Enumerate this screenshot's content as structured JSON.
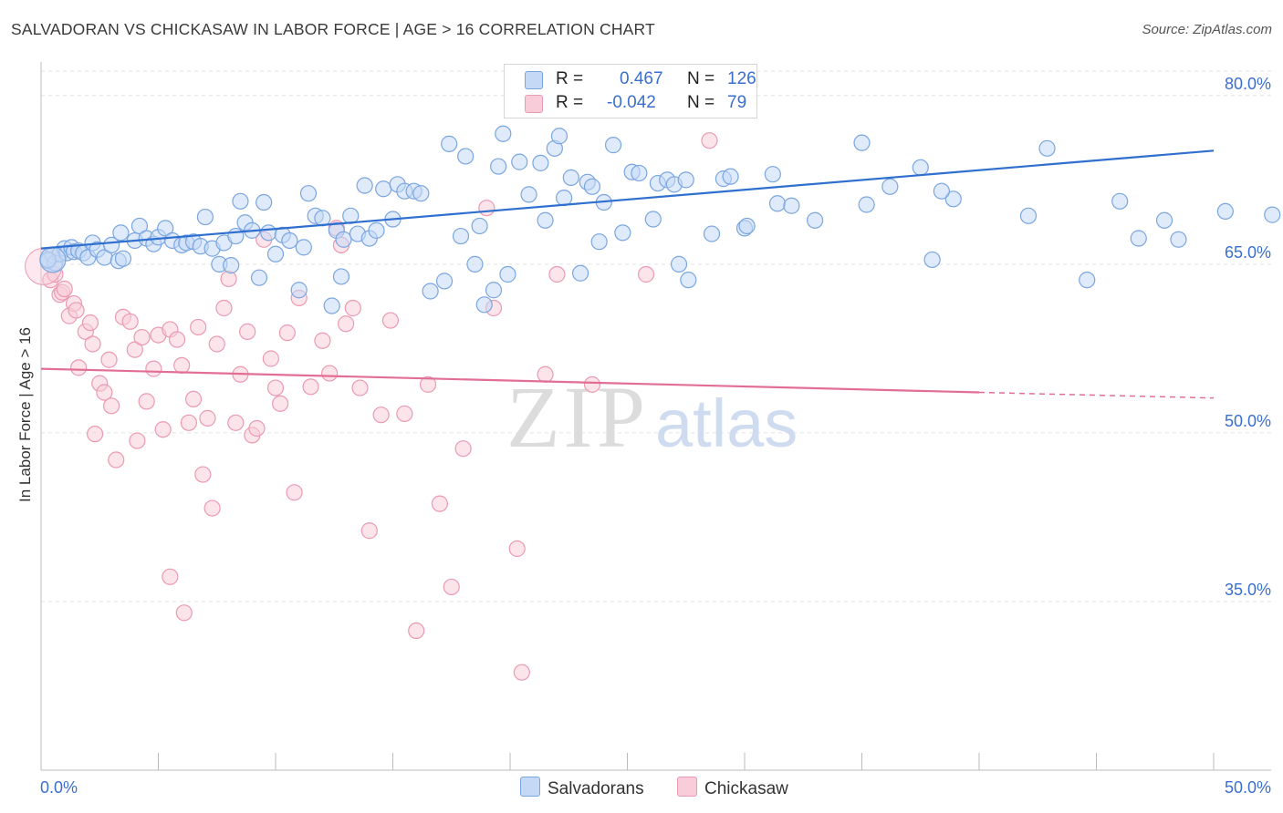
{
  "title": "SALVADORAN VS CHICKASAW IN LABOR FORCE | AGE > 16 CORRELATION CHART",
  "source": "Source: ZipAtlas.com",
  "watermark": {
    "zip": "ZIP",
    "atlas": "atlas"
  },
  "colors": {
    "blue_fill": "#c5d8f5",
    "blue_stroke": "#7aa6e0",
    "blue_line": "#2f6fcf",
    "pink_fill": "#f8cdd9",
    "pink_stroke": "#eb9ab3",
    "pink_line": "#e26e96",
    "axis_label": "#3a6fd0",
    "grid": "#e2e2e2"
  },
  "legend": {
    "rows": [
      {
        "r_label": "R =",
        "r_value": "0.467",
        "n_label": "N =",
        "n_value": "126"
      },
      {
        "r_label": "R =",
        "r_value": "-0.042",
        "n_label": "N =",
        "n_value": "79"
      }
    ],
    "series": [
      "Salvadorans",
      "Chickasaw"
    ]
  },
  "chart_data": {
    "type": "scatter",
    "title": "SALVADORAN VS CHICKASAW IN LABOR FORCE | AGE > 16 CORRELATION CHART",
    "xlabel": "",
    "ylabel": "In Labor Force | Age > 16",
    "xlim": [
      0,
      50
    ],
    "ylim": [
      20,
      82.5
    ],
    "x_tick_labels": [
      "0.0%",
      "50.0%"
    ],
    "y_ticks": [
      35,
      50,
      65,
      80
    ],
    "y_tick_labels": [
      "35.0%",
      "50.0%",
      "65.0%",
      "80.0%"
    ],
    "grid": "horizontal dashed",
    "legend_position": "top-center and bottom",
    "series": [
      {
        "name": "Salvadorans",
        "r": 0.467,
        "n": 126,
        "trend": {
          "x": [
            0,
            50
          ],
          "y": [
            66.4,
            75.1
          ]
        },
        "points": [
          [
            0.3,
            65.3
          ],
          [
            0.5,
            65.8
          ],
          [
            0.6,
            65.1
          ],
          [
            0.8,
            65.9
          ],
          [
            1.0,
            66.4
          ],
          [
            1.1,
            66.0
          ],
          [
            1.3,
            66.5
          ],
          [
            1.4,
            66.1
          ],
          [
            1.6,
            66.2
          ],
          [
            1.8,
            66.0
          ],
          [
            2.0,
            65.6
          ],
          [
            2.2,
            66.9
          ],
          [
            2.4,
            66.3
          ],
          [
            2.7,
            65.6
          ],
          [
            3.0,
            66.7
          ],
          [
            3.3,
            65.3
          ],
          [
            3.5,
            65.5
          ],
          [
            3.4,
            67.8
          ],
          [
            4.0,
            67.1
          ],
          [
            4.2,
            68.4
          ],
          [
            4.5,
            67.3
          ],
          [
            4.8,
            66.8
          ],
          [
            5.0,
            67.4
          ],
          [
            5.3,
            68.2
          ],
          [
            5.6,
            67.1
          ],
          [
            6.0,
            66.7
          ],
          [
            6.2,
            66.9
          ],
          [
            6.5,
            67.0
          ],
          [
            6.8,
            66.6
          ],
          [
            7.0,
            69.2
          ],
          [
            7.3,
            66.4
          ],
          [
            7.6,
            65.0
          ],
          [
            7.8,
            66.9
          ],
          [
            8.1,
            64.9
          ],
          [
            8.3,
            67.5
          ],
          [
            8.5,
            70.6
          ],
          [
            8.7,
            68.7
          ],
          [
            9.0,
            68.0
          ],
          [
            9.3,
            63.8
          ],
          [
            9.5,
            70.5
          ],
          [
            9.7,
            67.8
          ],
          [
            10.0,
            65.9
          ],
          [
            10.3,
            67.6
          ],
          [
            10.6,
            67.1
          ],
          [
            11.0,
            62.7
          ],
          [
            11.2,
            66.5
          ],
          [
            11.4,
            71.3
          ],
          [
            11.7,
            69.3
          ],
          [
            12.0,
            69.1
          ],
          [
            12.4,
            61.3
          ],
          [
            12.6,
            68.0
          ],
          [
            12.8,
            63.9
          ],
          [
            12.9,
            67.2
          ],
          [
            13.2,
            69.3
          ],
          [
            13.5,
            67.7
          ],
          [
            13.8,
            72.0
          ],
          [
            14.0,
            67.3
          ],
          [
            14.3,
            68.0
          ],
          [
            14.6,
            71.7
          ],
          [
            15.0,
            69.0
          ],
          [
            15.2,
            72.1
          ],
          [
            15.5,
            71.5
          ],
          [
            15.9,
            71.5
          ],
          [
            16.2,
            71.3
          ],
          [
            16.6,
            62.6
          ],
          [
            17.2,
            63.5
          ],
          [
            17.4,
            75.7
          ],
          [
            17.9,
            67.5
          ],
          [
            18.1,
            74.6
          ],
          [
            18.5,
            65.0
          ],
          [
            18.7,
            68.4
          ],
          [
            18.9,
            61.4
          ],
          [
            19.3,
            62.7
          ],
          [
            19.5,
            73.7
          ],
          [
            19.7,
            76.6
          ],
          [
            19.9,
            64.1
          ],
          [
            20.4,
            74.1
          ],
          [
            20.8,
            71.2
          ],
          [
            21.3,
            74.0
          ],
          [
            21.5,
            68.9
          ],
          [
            21.9,
            75.3
          ],
          [
            22.1,
            76.4
          ],
          [
            22.3,
            70.9
          ],
          [
            22.6,
            72.7
          ],
          [
            23.0,
            64.2
          ],
          [
            23.3,
            72.3
          ],
          [
            23.5,
            71.9
          ],
          [
            23.8,
            67.0
          ],
          [
            24.0,
            70.5
          ],
          [
            24.4,
            75.6
          ],
          [
            24.8,
            67.8
          ],
          [
            25.2,
            73.2
          ],
          [
            25.5,
            73.1
          ],
          [
            26.1,
            69.0
          ],
          [
            26.3,
            72.2
          ],
          [
            26.7,
            72.5
          ],
          [
            27.0,
            72.1
          ],
          [
            27.2,
            65.0
          ],
          [
            27.5,
            72.5
          ],
          [
            27.6,
            63.6
          ],
          [
            28.6,
            67.7
          ],
          [
            29.1,
            72.6
          ],
          [
            29.4,
            72.8
          ],
          [
            30.0,
            68.2
          ],
          [
            30.1,
            68.4
          ],
          [
            31.2,
            73.0
          ],
          [
            31.4,
            70.4
          ],
          [
            32.0,
            70.2
          ],
          [
            33.0,
            68.9
          ],
          [
            35.0,
            75.8
          ],
          [
            35.2,
            70.3
          ],
          [
            36.2,
            71.9
          ],
          [
            37.5,
            73.6
          ],
          [
            38.0,
            65.4
          ],
          [
            38.9,
            70.8
          ],
          [
            42.1,
            69.3
          ],
          [
            42.9,
            75.3
          ],
          [
            44.6,
            63.6
          ],
          [
            46.0,
            70.6
          ],
          [
            46.8,
            67.3
          ],
          [
            47.9,
            68.9
          ],
          [
            50.5,
            69.7
          ],
          [
            52.5,
            69.4
          ],
          [
            48.5,
            67.2
          ],
          [
            38.4,
            71.5
          ],
          [
            0.3,
            65.4
          ]
        ]
      },
      {
        "name": "Chickasaw",
        "r": -0.042,
        "n": 79,
        "trend": {
          "x": [
            0,
            40
          ],
          "y": [
            55.7,
            53.6
          ]
        },
        "trend_dashed": {
          "x": [
            40,
            50
          ],
          "y": [
            53.6,
            53.1
          ]
        },
        "points": [
          [
            0.4,
            63.6
          ],
          [
            0.6,
            64.1
          ],
          [
            0.8,
            62.3
          ],
          [
            0.9,
            62.5
          ],
          [
            1.0,
            62.8
          ],
          [
            1.2,
            60.4
          ],
          [
            1.4,
            61.5
          ],
          [
            1.6,
            55.8
          ],
          [
            1.9,
            59.0
          ],
          [
            2.1,
            59.8
          ],
          [
            2.2,
            57.9
          ],
          [
            2.3,
            49.9
          ],
          [
            2.5,
            54.4
          ],
          [
            2.7,
            53.6
          ],
          [
            2.9,
            56.5
          ],
          [
            3.0,
            52.4
          ],
          [
            3.2,
            47.6
          ],
          [
            3.5,
            60.3
          ],
          [
            3.8,
            59.9
          ],
          [
            4.0,
            57.4
          ],
          [
            4.1,
            49.3
          ],
          [
            4.3,
            58.5
          ],
          [
            4.5,
            52.8
          ],
          [
            4.8,
            55.7
          ],
          [
            5.0,
            58.7
          ],
          [
            5.2,
            50.3
          ],
          [
            5.5,
            59.2
          ],
          [
            5.8,
            58.3
          ],
          [
            6.0,
            56.0
          ],
          [
            6.3,
            50.9
          ],
          [
            6.5,
            53.0
          ],
          [
            6.7,
            59.4
          ],
          [
            6.9,
            46.3
          ],
          [
            7.1,
            51.3
          ],
          [
            7.3,
            43.3
          ],
          [
            7.5,
            57.9
          ],
          [
            7.8,
            61.1
          ],
          [
            8.0,
            63.7
          ],
          [
            8.3,
            50.9
          ],
          [
            8.5,
            55.2
          ],
          [
            8.8,
            59.0
          ],
          [
            9.0,
            49.8
          ],
          [
            9.2,
            50.4
          ],
          [
            9.5,
            67.2
          ],
          [
            9.8,
            56.6
          ],
          [
            10.0,
            54.0
          ],
          [
            10.2,
            52.6
          ],
          [
            10.5,
            58.9
          ],
          [
            10.8,
            44.7
          ],
          [
            11.0,
            62.0
          ],
          [
            11.5,
            54.1
          ],
          [
            12.0,
            58.2
          ],
          [
            12.3,
            55.3
          ],
          [
            12.6,
            68.2
          ],
          [
            12.8,
            66.7
          ],
          [
            13.0,
            59.7
          ],
          [
            13.3,
            61.1
          ],
          [
            13.6,
            54.0
          ],
          [
            14.0,
            41.3
          ],
          [
            14.5,
            51.6
          ],
          [
            14.9,
            60.0
          ],
          [
            15.5,
            51.7
          ],
          [
            16.0,
            32.4
          ],
          [
            16.5,
            54.3
          ],
          [
            17.0,
            43.7
          ],
          [
            17.5,
            36.3
          ],
          [
            18.0,
            48.6
          ],
          [
            19.0,
            70.0
          ],
          [
            19.3,
            61.1
          ],
          [
            20.3,
            39.7
          ],
          [
            20.5,
            28.7
          ],
          [
            21.5,
            55.2
          ],
          [
            22.0,
            64.1
          ],
          [
            23.5,
            54.3
          ],
          [
            25.8,
            64.1
          ],
          [
            28.5,
            76.0
          ],
          [
            1.5,
            60.9
          ],
          [
            5.5,
            37.2
          ],
          [
            6.1,
            34.0
          ]
        ]
      }
    ]
  }
}
